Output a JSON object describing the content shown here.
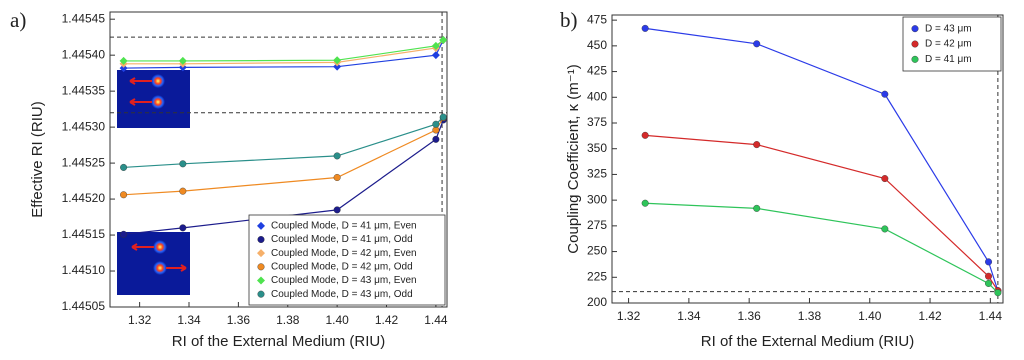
{
  "chart_data": [
    {
      "type": "line",
      "label": "a)",
      "xlabel": "RI of the External Medium (RIU)",
      "ylabel": "Effective RI (RIU)",
      "xlim": [
        1.308,
        1.4445
      ],
      "ylim": [
        1.44505,
        1.44546
      ],
      "xticks": [
        1.32,
        1.34,
        1.36,
        1.38,
        {
          "value": 1.4,
          "label": "1.40"
        },
        1.42,
        1.44
      ],
      "yticks": [
        1.44505,
        {
          "value": 1.4451,
          "label": "1.44510"
        },
        1.44515,
        {
          "value": 1.4452,
          "label": "1.44520"
        },
        1.44525,
        {
          "value": 1.4453,
          "label": "1.44530"
        },
        1.44535,
        {
          "value": 1.4454,
          "label": "1.44540"
        },
        1.44545
      ],
      "hlines": [
        1.445425,
        1.44532
      ],
      "vlines": [
        1.4425
      ],
      "legend": "lower right",
      "x": [
        1.3135,
        1.3375,
        1.4,
        1.44,
        1.443
      ],
      "series": [
        {
          "name": "Coupled Mode, D = 41 μm, Even",
          "color": "#1f3fe0",
          "marker": "diamond",
          "values": [
            1.445382,
            1.445383,
            1.445384,
            1.4454,
            1.445421
          ]
        },
        {
          "name": "Coupled Mode, D = 41 μm, Odd",
          "color": "#1c1c8c",
          "marker": "circle",
          "values": [
            1.445151,
            1.44516,
            1.445185,
            1.445283,
            1.44531
          ]
        },
        {
          "name": "Coupled Mode, D = 42 μm, Even",
          "color": "#f6b06a",
          "marker": "diamond",
          "values": [
            1.445388,
            1.445388,
            1.44539,
            1.44541,
            1.445421
          ]
        },
        {
          "name": "Coupled Mode, D = 42 μm, Odd",
          "color": "#ef8a22",
          "marker": "circle",
          "values": [
            1.445206,
            1.445211,
            1.44523,
            1.445296,
            1.445313
          ]
        },
        {
          "name": "Coupled Mode, D = 43 μm, Even",
          "color": "#4fe34f",
          "marker": "diamond",
          "values": [
            1.445392,
            1.445392,
            1.445393,
            1.445413,
            1.445421
          ]
        },
        {
          "name": "Coupled Mode, D = 43 μm, Odd",
          "color": "#2a8f8a",
          "marker": "circle",
          "values": [
            1.445244,
            1.445249,
            1.44526,
            1.445304,
            1.445314
          ]
        }
      ]
    },
    {
      "type": "line",
      "label": "b)",
      "xlabel": "RI of the External Medium (RIU)",
      "ylabel": "Coupling Coefficient, κ (m⁻¹)",
      "xlim": [
        1.3145,
        1.4442
      ],
      "ylim": [
        200,
        480
      ],
      "xticks": [
        1.32,
        1.34,
        1.36,
        1.38,
        {
          "value": 1.4,
          "label": "1.40"
        },
        1.42,
        1.44
      ],
      "yticks": [
        200,
        225,
        250,
        275,
        300,
        325,
        350,
        375,
        400,
        425,
        450,
        475
      ],
      "hlines": [
        211
      ],
      "vlines": [
        1.4425
      ],
      "legend": "upper right",
      "x": [
        1.3255,
        1.3625,
        1.405,
        1.4394,
        1.4425
      ],
      "series": [
        {
          "name": "D = 43 μm",
          "color": "#2b3be8",
          "marker": "circle",
          "values": [
            467,
            452,
            403,
            240,
            212
          ]
        },
        {
          "name": "D = 42 μm",
          "color": "#d42a2a",
          "marker": "circle",
          "values": [
            363,
            354,
            321,
            226,
            212
          ]
        },
        {
          "name": "D = 41 μm",
          "color": "#2ec45a",
          "marker": "circle",
          "values": [
            297,
            292,
            272,
            219,
            210
          ]
        }
      ]
    }
  ]
}
